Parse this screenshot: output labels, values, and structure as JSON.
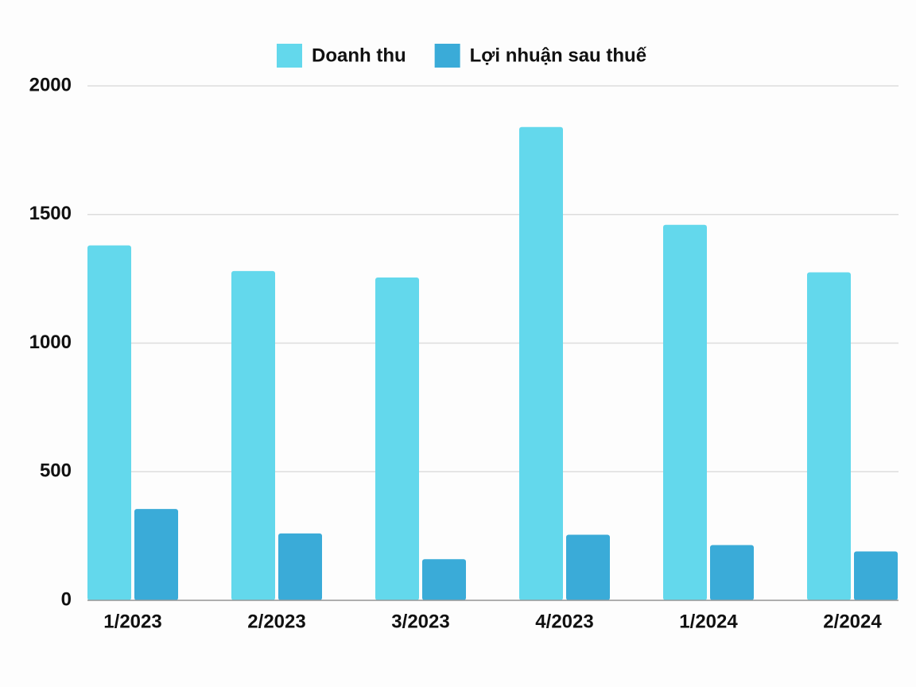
{
  "chart_data": {
    "type": "bar",
    "categories": [
      "1/2023",
      "2/2023",
      "3/2023",
      "4/2023",
      "1/2024",
      "2/2024"
    ],
    "series": [
      {
        "name": "Doanh thu",
        "color": "#63d8ec",
        "values": [
          1380,
          1280,
          1255,
          1840,
          1460,
          1275
        ]
      },
      {
        "name": "Lợi nhuận sau thuế",
        "color": "#3aabd8",
        "values": [
          355,
          260,
          160,
          255,
          215,
          190
        ]
      }
    ],
    "ylim": [
      0,
      2000
    ],
    "yticks": [
      0,
      500,
      1000,
      1500,
      2000
    ],
    "grid": true
  }
}
